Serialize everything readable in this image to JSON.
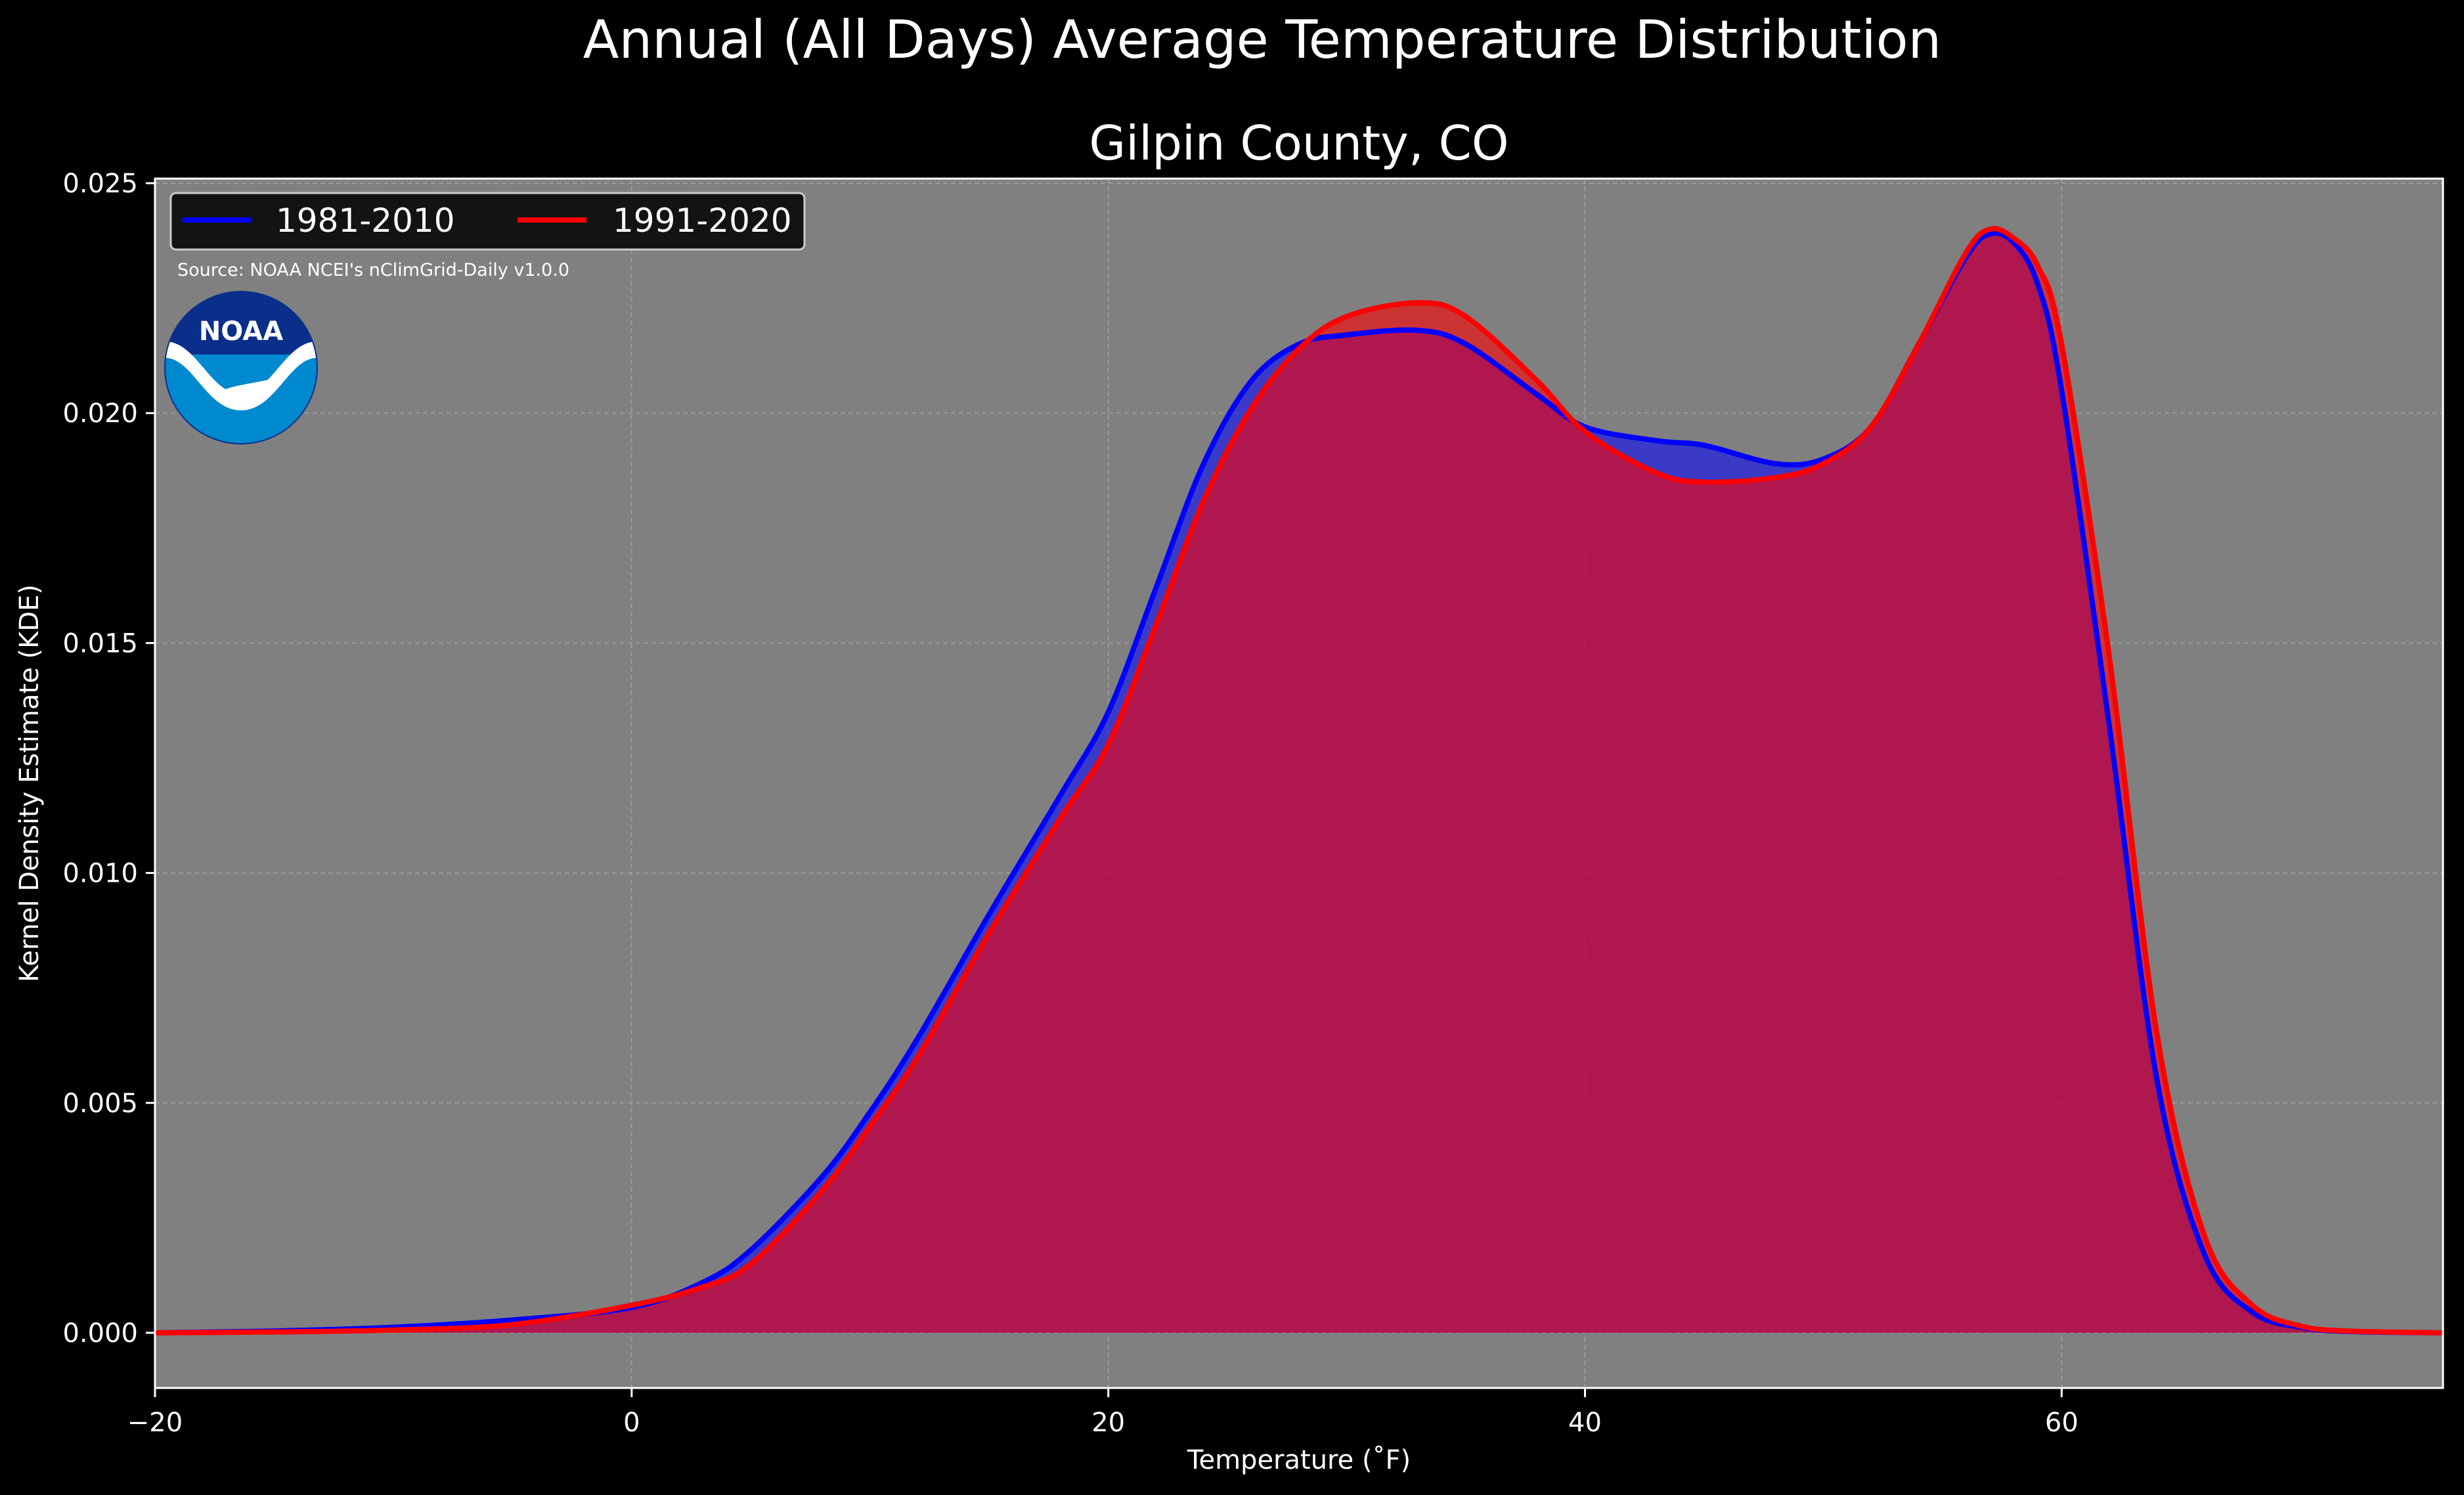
{
  "title": "Annual (All Days) Average Temperature Distribution",
  "subtitle": "Gilpin County, CO",
  "source_note": "Source: NOAA NCEI's nClimGrid-Daily v1.0.0",
  "logo_text": "NOAA",
  "colors": {
    "background": "#000000",
    "plot_background": "#808080",
    "grid": "#b0b0b0",
    "series_1": "#0000ff",
    "series_2": "#ff0000",
    "logo_dark": "#0a2f8a",
    "logo_light": "#0089cf"
  },
  "chart_data": {
    "type": "area",
    "title": "Gilpin County, CO",
    "suptitle": "Annual (All Days) Average Temperature Distribution",
    "xlabel": "Temperature (˚F)",
    "ylabel": "Kernel Density Estimate (KDE)",
    "xlim": [
      -20,
      76
    ],
    "ylim": [
      -0.0012,
      0.0251
    ],
    "xticks": [
      -20,
      0,
      20,
      40,
      60
    ],
    "xtick_labels": [
      "−20",
      "0",
      "20",
      "40",
      "60"
    ],
    "yticks": [
      0.0,
      0.005,
      0.01,
      0.015,
      0.02,
      0.025
    ],
    "ytick_labels": [
      "0.000",
      "0.005",
      "0.010",
      "0.015",
      "0.020",
      "0.025"
    ],
    "grid": true,
    "legend": {
      "position": "top-left",
      "columns": 2
    },
    "series": [
      {
        "name": "1981-2010",
        "color": "#0000ff",
        "x": [
          -20,
          -15,
          -10,
          -5,
          0,
          3,
          5,
          8,
          10,
          12,
          15,
          18,
          20,
          22,
          24,
          26,
          28,
          30,
          33,
          35,
          38,
          40,
          43,
          45,
          48,
          50,
          52,
          54,
          56,
          57,
          58,
          59,
          60,
          62,
          64,
          66,
          68,
          70,
          72,
          76
        ],
        "y": [
          0.0,
          4e-05,
          0.00012,
          0.00028,
          0.00055,
          0.0011,
          0.0018,
          0.0034,
          0.0048,
          0.0064,
          0.0091,
          0.0117,
          0.0135,
          0.0162,
          0.0189,
          0.0207,
          0.0215,
          0.0217,
          0.0218,
          0.0215,
          0.0204,
          0.0197,
          0.0194,
          0.0193,
          0.0189,
          0.019,
          0.0197,
          0.0215,
          0.0234,
          0.0239,
          0.0237,
          0.0228,
          0.0205,
          0.0132,
          0.0055,
          0.0017,
          0.00045,
          0.00012,
          3e-05,
          0.0
        ]
      },
      {
        "name": "1991-2020",
        "color": "#ff0000",
        "x": [
          -20,
          -15,
          -10,
          -5,
          0,
          3,
          5,
          8,
          10,
          12,
          15,
          18,
          20,
          22,
          24,
          26,
          28,
          30,
          33,
          35,
          38,
          40,
          43,
          45,
          48,
          50,
          52,
          54,
          56,
          57,
          58,
          59,
          60,
          62,
          64,
          66,
          68,
          70,
          72,
          76
        ],
        "y": [
          0.0,
          2e-05,
          6e-05,
          0.00018,
          0.0006,
          0.001,
          0.0015,
          0.0031,
          0.0045,
          0.006,
          0.0087,
          0.0112,
          0.0128,
          0.0154,
          0.0181,
          0.0201,
          0.0214,
          0.0221,
          0.0224,
          0.0221,
          0.0207,
          0.0196,
          0.0187,
          0.0185,
          0.0186,
          0.0189,
          0.0197,
          0.0215,
          0.0235,
          0.024,
          0.0238,
          0.0232,
          0.0215,
          0.0147,
          0.0065,
          0.0021,
          0.0006,
          0.00015,
          4e-05,
          0.0
        ]
      }
    ]
  }
}
